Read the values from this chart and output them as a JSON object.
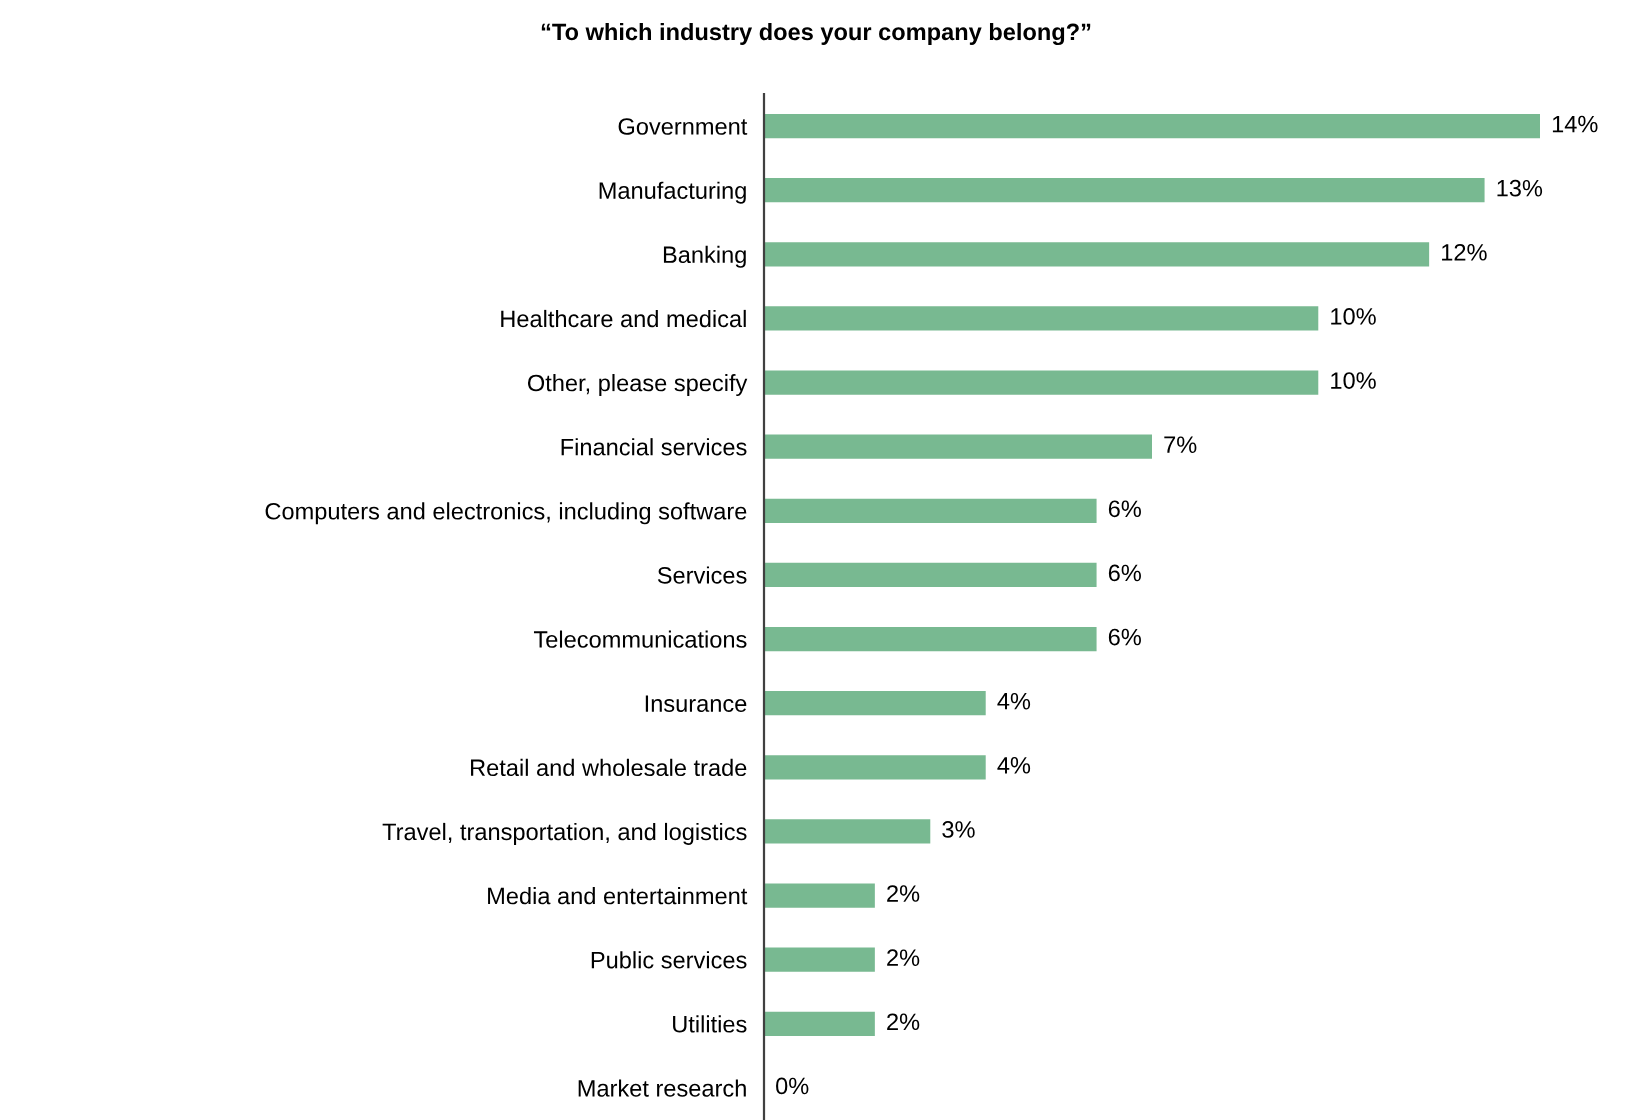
{
  "chart_data": {
    "type": "bar",
    "orientation": "horizontal",
    "title": "“To which industry does your company belong?”",
    "categories": [
      "Government",
      "Manufacturing",
      "Banking",
      "Healthcare and medical",
      "Other, please specify",
      "Financial services",
      "Computers and electronics, including software",
      "Services",
      "Telecommunications",
      "Insurance",
      "Retail and wholesale trade",
      "Travel, transportation, and logistics",
      "Media and entertainment",
      "Public services",
      "Utilities",
      "Market research"
    ],
    "values": [
      14,
      13,
      12,
      10,
      10,
      7,
      6,
      6,
      6,
      4,
      4,
      3,
      2,
      2,
      2,
      0
    ],
    "value_labels": [
      "14%",
      "13%",
      "12%",
      "10%",
      "10%",
      "7%",
      "6%",
      "6%",
      "6%",
      "4%",
      "4%",
      "3%",
      "2%",
      "2%",
      "2%",
      "0%"
    ],
    "color": "#78b991",
    "grid": false,
    "legend": false
  }
}
